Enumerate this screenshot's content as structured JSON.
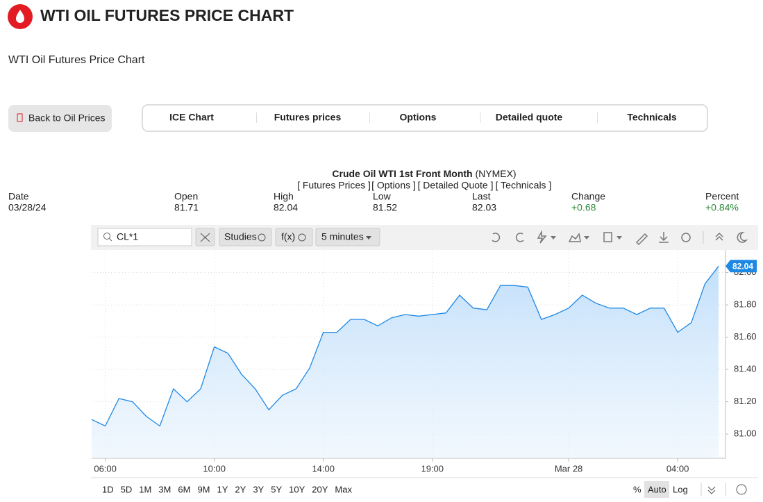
{
  "header": {
    "title": "WTI OIL FUTURES PRICE CHART",
    "subtitle": "WTI Oil Futures Price Chart"
  },
  "back_button": "Back to Oil Prices",
  "tabs": [
    "ICE Chart",
    "Futures prices",
    "Options",
    "Detailed quote",
    "Technicals"
  ],
  "quote": {
    "title": "Crude Oil WTI 1st Front Month",
    "exchange": "(NYMEX)",
    "links": [
      "[ Futures Prices ]",
      "[ Options ]",
      "[ Detailed Quote ]",
      "[ Technicals ]"
    ],
    "fields": [
      {
        "label": "Date",
        "value": "03/28/24"
      },
      {
        "label": "Open",
        "value": "81.71"
      },
      {
        "label": "High",
        "value": "82.04"
      },
      {
        "label": "Low",
        "value": "81.52"
      },
      {
        "label": "Last",
        "value": "82.03"
      },
      {
        "label": "Change",
        "value": "+0.68"
      },
      {
        "label": "Percent",
        "value": "+0.84%"
      }
    ]
  },
  "toolbar": {
    "symbol": "CL*1",
    "studies": "Studies",
    "functions": "f(x)",
    "interval": "5 minutes"
  },
  "ranges": [
    "1D",
    "5D",
    "1M",
    "3M",
    "6M",
    "9M",
    "1Y",
    "2Y",
    "3Y",
    "5Y",
    "10Y",
    "20Y",
    "Max"
  ],
  "scale_options": [
    "%",
    "Auto",
    "Log"
  ],
  "chart_data": {
    "type": "area",
    "categories": [
      null,
      "06:00",
      null,
      null,
      null,
      null,
      null,
      null,
      null,
      "10:00",
      null,
      null,
      null,
      null,
      null,
      null,
      null,
      "14:00",
      null,
      null,
      null,
      null,
      null,
      null,
      null,
      "19:00",
      null,
      null,
      null,
      null,
      null,
      null,
      null,
      null,
      null,
      "Mar 28",
      null,
      null,
      null,
      null,
      null,
      null,
      null,
      "04:00",
      null,
      null,
      null
    ],
    "series": [
      {
        "color": "#1e88e5",
        "values": [
          81.09,
          81.05,
          81.22,
          81.2,
          81.11,
          81.05,
          81.28,
          81.2,
          81.28,
          81.54,
          81.5,
          81.37,
          81.28,
          81.15,
          81.24,
          81.28,
          81.41,
          81.63,
          81.63,
          81.71,
          81.71,
          81.67,
          81.72,
          81.74,
          81.73,
          81.74,
          81.75,
          81.86,
          81.78,
          81.77,
          81.92,
          81.92,
          81.91,
          81.71,
          81.74,
          81.78,
          81.86,
          81.81,
          81.78,
          81.78,
          81.74,
          81.78,
          81.78,
          81.63,
          81.69,
          81.93,
          82.04
        ]
      }
    ],
    "last_label": "82.04",
    "ylim": [
      80.85,
      82.14
    ],
    "yticks": [
      {
        "value": 81,
        "label": "81.00"
      },
      {
        "value": 81.2,
        "label": "81.20"
      },
      {
        "value": 81.4,
        "label": "81.40"
      },
      {
        "value": 81.6,
        "label": "81.60"
      },
      {
        "value": 81.8,
        "label": "81.80"
      },
      {
        "value": 82,
        "label": "82.00"
      }
    ],
    "grid": true
  }
}
